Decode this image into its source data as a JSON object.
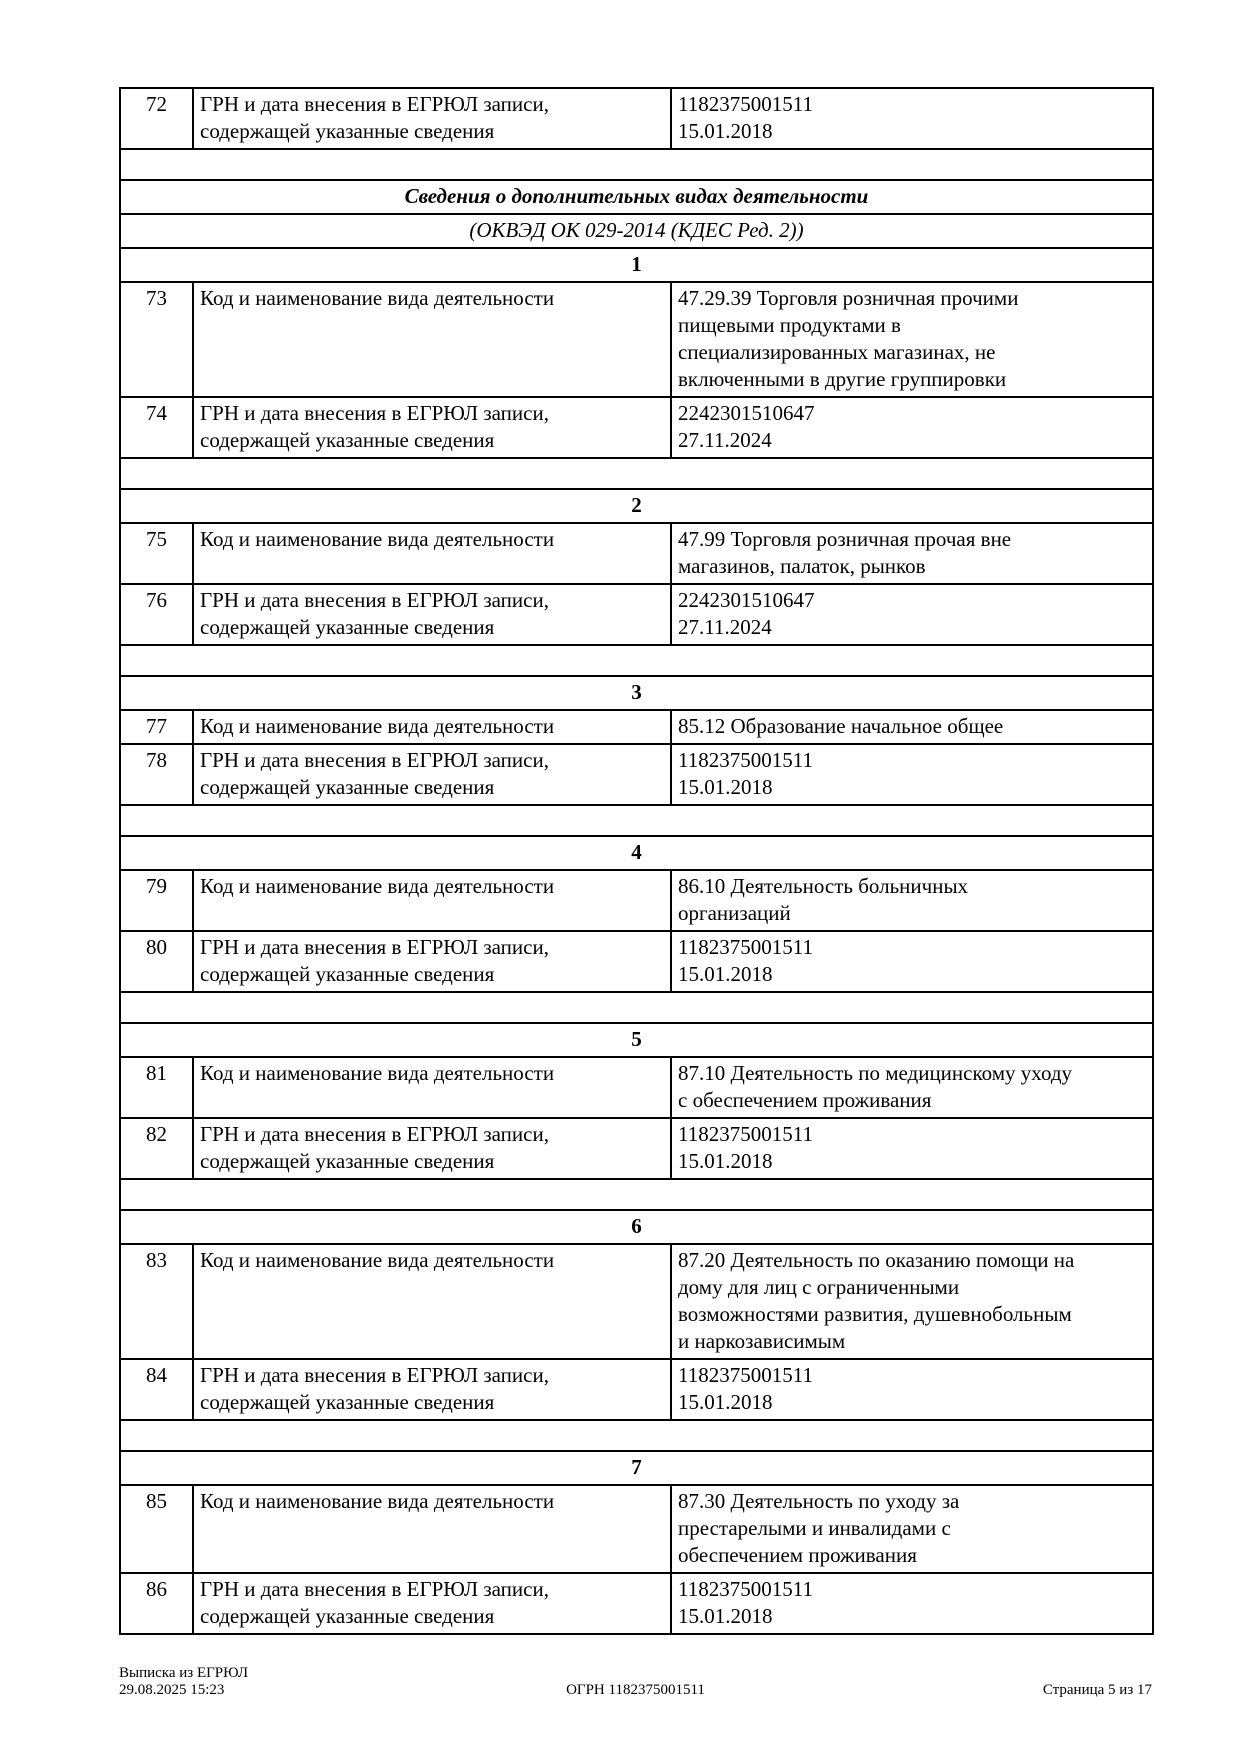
{
  "document": {
    "rows_top": [
      {
        "num": "72",
        "label": "ГРН и дата внесения в ЕГРЮЛ записи,\nсодержащей указанные сведения",
        "value": "1182375001511\n15.01.2018"
      }
    ],
    "section": {
      "title": "Сведения о дополнительных видах деятельности",
      "subtitle": "(ОКВЭД ОК 029-2014 (КДЕС Ред. 2))"
    },
    "groups": [
      {
        "index": "1",
        "rows": [
          {
            "num": "73",
            "label": "Код и наименование вида деятельности",
            "value": "47.29.39 Торговля розничная прочими\nпищевыми продуктами в\nспециализированных магазинах, не\nвключенными в другие группировки"
          },
          {
            "num": "74",
            "label": "ГРН и дата внесения в ЕГРЮЛ записи,\nсодержащей указанные сведения",
            "value": "2242301510647\n27.11.2024"
          }
        ]
      },
      {
        "index": "2",
        "rows": [
          {
            "num": "75",
            "label": "Код и наименование вида деятельности",
            "value": "47.99 Торговля розничная прочая вне\nмагазинов, палаток, рынков"
          },
          {
            "num": "76",
            "label": "ГРН и дата внесения в ЕГРЮЛ записи,\nсодержащей указанные сведения",
            "value": "2242301510647\n27.11.2024"
          }
        ]
      },
      {
        "index": "3",
        "rows": [
          {
            "num": "77",
            "label": "Код и наименование вида деятельности",
            "value": "85.12 Образование начальное общее"
          },
          {
            "num": "78",
            "label": "ГРН и дата внесения в ЕГРЮЛ записи,\nсодержащей указанные сведения",
            "value": "1182375001511\n15.01.2018"
          }
        ]
      },
      {
        "index": "4",
        "rows": [
          {
            "num": "79",
            "label": "Код и наименование вида деятельности",
            "value": "86.10 Деятельность больничных\nорганизаций"
          },
          {
            "num": "80",
            "label": "ГРН и дата внесения в ЕГРЮЛ записи,\nсодержащей указанные сведения",
            "value": "1182375001511\n15.01.2018"
          }
        ]
      },
      {
        "index": "5",
        "rows": [
          {
            "num": "81",
            "label": "Код и наименование вида деятельности",
            "value": "87.10 Деятельность по медицинскому уходу\nс обеспечением проживания"
          },
          {
            "num": "82",
            "label": "ГРН и дата внесения в ЕГРЮЛ записи,\nсодержащей указанные сведения",
            "value": "1182375001511\n15.01.2018"
          }
        ]
      },
      {
        "index": "6",
        "rows": [
          {
            "num": "83",
            "label": "Код и наименование вида деятельности",
            "value": "87.20 Деятельность по оказанию помощи на\nдому для лиц с ограниченными\nвозможностями развития, душевнобольным\nи наркозависимым"
          },
          {
            "num": "84",
            "label": "ГРН и дата внесения в ЕГРЮЛ записи,\nсодержащей указанные сведения",
            "value": "1182375001511\n15.01.2018"
          }
        ]
      },
      {
        "index": "7",
        "rows": [
          {
            "num": "85",
            "label": "Код и наименование вида деятельности",
            "value": "87.30 Деятельность по уходу за\nпрестарелыми и инвалидами с\nобеспечением проживания"
          },
          {
            "num": "86",
            "label": "ГРН и дата внесения в ЕГРЮЛ записи,\nсодержащей указанные сведения",
            "value": "1182375001511\n15.01.2018"
          }
        ]
      }
    ],
    "footer": {
      "doc_type": "Выписка из ЕГРЮЛ",
      "generated": "29.08.2025 15:23",
      "ogrn": "ОГРН 1182375001511",
      "page": "Страница 5 из 17"
    }
  }
}
